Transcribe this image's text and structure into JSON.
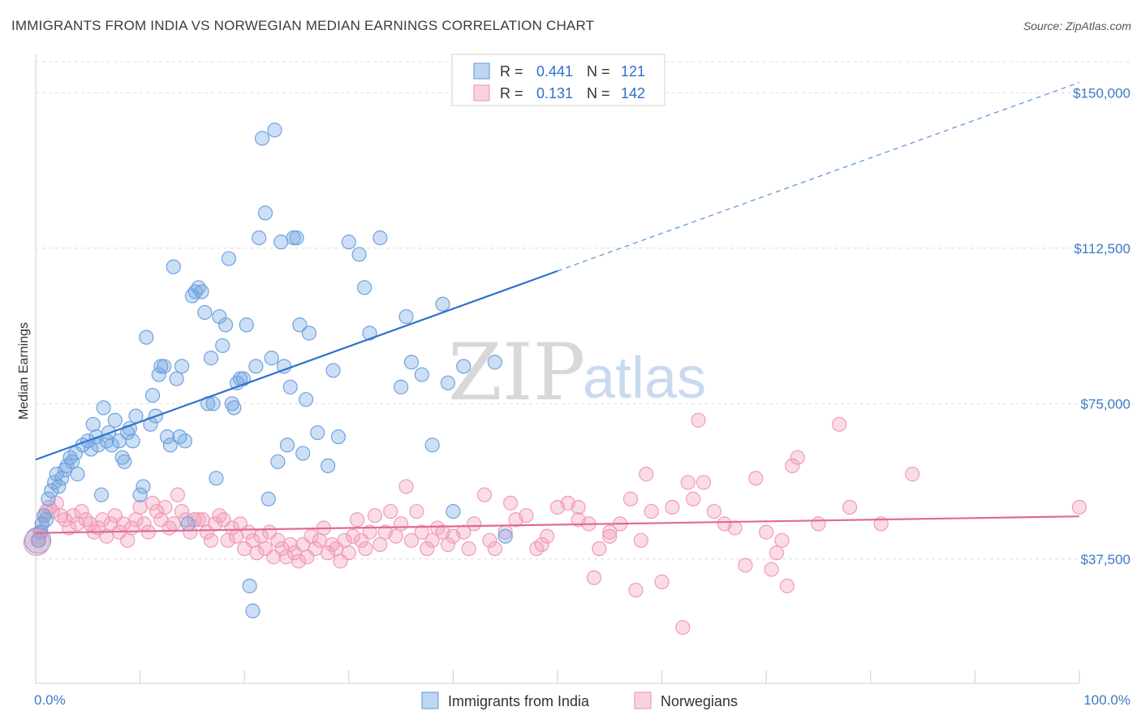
{
  "title": "IMMIGRANTS FROM INDIA VS NORWEGIAN MEDIAN EARNINGS CORRELATION CHART",
  "source": "Source: ZipAtlas.com",
  "watermark": {
    "zip": "ZIP",
    "atlas": "atlas"
  },
  "chart_data": {
    "type": "scatter",
    "ylabel": "Median Earnings",
    "xlim": [
      0,
      100
    ],
    "ylim": [
      7500,
      157500
    ],
    "x_tick_labels": {
      "min": "0.0%",
      "max": "100.0%"
    },
    "y_ticks": [
      {
        "value": 37500,
        "label": "$37,500"
      },
      {
        "value": 75000,
        "label": "$75,000"
      },
      {
        "value": 112500,
        "label": "$112,500"
      },
      {
        "value": 150000,
        "label": "$150,000"
      }
    ],
    "grid": "horizontal dashed",
    "legend_top": [
      {
        "r_label": "R =",
        "r": "0.441",
        "n_label": "N =",
        "n": "121",
        "color": "#6fa3e0"
      },
      {
        "r_label": "R =",
        "r": "0.131",
        "n_label": "N =",
        "n": "142",
        "color": "#f19bb8"
      }
    ],
    "series": [
      {
        "name": "Immigrants from India",
        "color": "#6fa3e0",
        "line_color": "#2e73cc",
        "trend": {
          "x0": 0,
          "y0": 61500,
          "x1": 50,
          "y1": 107000,
          "extend_to_x": 100,
          "extend_y": 152500
        },
        "points": [
          [
            0.3,
            42
          ],
          [
            0.5,
            44
          ],
          [
            0.6,
            46
          ],
          [
            0.8,
            48
          ],
          [
            1,
            47
          ],
          [
            1.2,
            52
          ],
          [
            1.5,
            54
          ],
          [
            1.8,
            56
          ],
          [
            2,
            58
          ],
          [
            2.2,
            55
          ],
          [
            2.5,
            57
          ],
          [
            2.8,
            59
          ],
          [
            3,
            60
          ],
          [
            3.3,
            62
          ],
          [
            3.5,
            61
          ],
          [
            3.8,
            63
          ],
          [
            4,
            58
          ],
          [
            4.5,
            65
          ],
          [
            5,
            66
          ],
          [
            5.3,
            64
          ],
          [
            5.5,
            70
          ],
          [
            5.8,
            67
          ],
          [
            6,
            65
          ],
          [
            6.3,
            53
          ],
          [
            6.5,
            74
          ],
          [
            6.8,
            66
          ],
          [
            7,
            68
          ],
          [
            7.3,
            65
          ],
          [
            7.6,
            71
          ],
          [
            8,
            66
          ],
          [
            8.3,
            62
          ],
          [
            8.5,
            61
          ],
          [
            8.8,
            68
          ],
          [
            9,
            69
          ],
          [
            9.3,
            66
          ],
          [
            9.6,
            72
          ],
          [
            10,
            53
          ],
          [
            10.3,
            55
          ],
          [
            10.6,
            91
          ],
          [
            11,
            70
          ],
          [
            11.2,
            77
          ],
          [
            11.5,
            72
          ],
          [
            11.8,
            82
          ],
          [
            12,
            84
          ],
          [
            12.3,
            84
          ],
          [
            12.6,
            67
          ],
          [
            12.9,
            65
          ],
          [
            13.2,
            108
          ],
          [
            13.5,
            81
          ],
          [
            13.8,
            67
          ],
          [
            14,
            84
          ],
          [
            14.3,
            66
          ],
          [
            14.6,
            46
          ],
          [
            15,
            101
          ],
          [
            15.3,
            102
          ],
          [
            15.6,
            103
          ],
          [
            15.9,
            102
          ],
          [
            16.2,
            97
          ],
          [
            16.5,
            75
          ],
          [
            16.8,
            86
          ],
          [
            17,
            75
          ],
          [
            17.3,
            57
          ],
          [
            17.6,
            96
          ],
          [
            17.9,
            89
          ],
          [
            18.2,
            94
          ],
          [
            18.5,
            110
          ],
          [
            18.8,
            75
          ],
          [
            19,
            74
          ],
          [
            19.3,
            80
          ],
          [
            19.6,
            81
          ],
          [
            19.9,
            81
          ],
          [
            20.2,
            94
          ],
          [
            20.5,
            31
          ],
          [
            20.8,
            25
          ],
          [
            21.1,
            84
          ],
          [
            21.4,
            115
          ],
          [
            21.7,
            139
          ],
          [
            22,
            121
          ],
          [
            22.3,
            52
          ],
          [
            22.6,
            86
          ],
          [
            22.9,
            141
          ],
          [
            23.2,
            61
          ],
          [
            23.5,
            114
          ],
          [
            23.8,
            84
          ],
          [
            24.1,
            65
          ],
          [
            24.4,
            79
          ],
          [
            24.7,
            115
          ],
          [
            25,
            115
          ],
          [
            25.3,
            94
          ],
          [
            25.6,
            63
          ],
          [
            25.9,
            76
          ],
          [
            26.2,
            92
          ],
          [
            27,
            68
          ],
          [
            28,
            60
          ],
          [
            28.5,
            83
          ],
          [
            29,
            67
          ],
          [
            30,
            114
          ],
          [
            31,
            111
          ],
          [
            31.5,
            103
          ],
          [
            32,
            92
          ],
          [
            33,
            115
          ],
          [
            35,
            79
          ],
          [
            35.5,
            96
          ],
          [
            36,
            85
          ],
          [
            37,
            82
          ],
          [
            38,
            65
          ],
          [
            39,
            99
          ],
          [
            39.5,
            80
          ],
          [
            40,
            49
          ],
          [
            41,
            84
          ],
          [
            44,
            85
          ],
          [
            45,
            43
          ]
        ],
        "size": 15
      },
      {
        "name": "Norwegians",
        "color": "#f19bb8",
        "line_color": "#e06a94",
        "trend": {
          "x0": 0,
          "y0": 43800,
          "x1": 100,
          "y1": 47800
        },
        "points": [
          [
            0.2,
            42
          ],
          [
            0.4,
            44
          ],
          [
            0.6,
            46
          ],
          [
            0.8,
            48
          ],
          [
            1,
            49
          ],
          [
            1.3,
            50
          ],
          [
            1.6,
            49
          ],
          [
            2,
            51
          ],
          [
            2.4,
            48
          ],
          [
            2.8,
            47
          ],
          [
            3.2,
            45
          ],
          [
            3.6,
            48
          ],
          [
            4,
            46
          ],
          [
            4.4,
            49
          ],
          [
            4.8,
            47
          ],
          [
            5.2,
            46
          ],
          [
            5.6,
            44
          ],
          [
            6,
            45
          ],
          [
            6.4,
            47
          ],
          [
            6.8,
            43
          ],
          [
            7.2,
            46
          ],
          [
            7.6,
            48
          ],
          [
            8,
            44
          ],
          [
            8.4,
            46
          ],
          [
            8.8,
            42
          ],
          [
            9.2,
            45
          ],
          [
            9.6,
            47
          ],
          [
            10,
            50
          ],
          [
            10.4,
            46
          ],
          [
            10.8,
            44
          ],
          [
            11.2,
            51
          ],
          [
            11.6,
            49
          ],
          [
            12,
            47
          ],
          [
            12.4,
            50
          ],
          [
            12.8,
            45
          ],
          [
            13.2,
            46
          ],
          [
            13.6,
            53
          ],
          [
            14,
            49
          ],
          [
            14.4,
            47
          ],
          [
            14.8,
            44
          ],
          [
            15.2,
            47
          ],
          [
            15.6,
            47
          ],
          [
            16,
            47
          ],
          [
            16.4,
            44
          ],
          [
            16.8,
            42
          ],
          [
            17.2,
            46
          ],
          [
            17.6,
            48
          ],
          [
            18,
            47
          ],
          [
            18.4,
            42
          ],
          [
            18.8,
            45
          ],
          [
            19.2,
            43
          ],
          [
            19.6,
            46
          ],
          [
            20,
            40
          ],
          [
            20.4,
            44
          ],
          [
            20.8,
            42
          ],
          [
            21.2,
            39
          ],
          [
            21.6,
            43
          ],
          [
            22,
            40
          ],
          [
            22.4,
            44
          ],
          [
            22.8,
            38
          ],
          [
            23.2,
            42
          ],
          [
            23.6,
            40
          ],
          [
            24,
            38
          ],
          [
            24.4,
            41
          ],
          [
            24.8,
            39
          ],
          [
            25.2,
            37
          ],
          [
            25.6,
            41
          ],
          [
            26,
            38
          ],
          [
            26.4,
            43
          ],
          [
            26.8,
            40
          ],
          [
            27.2,
            42
          ],
          [
            27.6,
            45
          ],
          [
            28,
            39
          ],
          [
            28.4,
            41
          ],
          [
            28.8,
            40
          ],
          [
            29.2,
            37
          ],
          [
            29.6,
            42
          ],
          [
            30,
            39
          ],
          [
            30.4,
            43
          ],
          [
            30.8,
            47
          ],
          [
            31.2,
            42
          ],
          [
            31.6,
            40
          ],
          [
            32,
            44
          ],
          [
            32.5,
            48
          ],
          [
            33,
            41
          ],
          [
            33.5,
            44
          ],
          [
            34,
            49
          ],
          [
            34.5,
            43
          ],
          [
            35,
            46
          ],
          [
            35.5,
            55
          ],
          [
            36,
            42
          ],
          [
            36.5,
            49
          ],
          [
            37,
            44
          ],
          [
            37.5,
            40
          ],
          [
            38,
            42
          ],
          [
            38.5,
            45
          ],
          [
            39,
            44
          ],
          [
            39.5,
            41
          ],
          [
            40,
            43
          ],
          [
            41,
            44
          ],
          [
            41.5,
            40
          ],
          [
            42,
            46
          ],
          [
            43,
            53
          ],
          [
            43.5,
            42
          ],
          [
            44,
            40
          ],
          [
            45,
            44
          ],
          [
            45.5,
            51
          ],
          [
            46,
            47
          ],
          [
            47,
            48
          ],
          [
            48,
            40
          ],
          [
            48.5,
            41
          ],
          [
            49,
            43
          ],
          [
            50,
            50
          ],
          [
            51,
            51
          ],
          [
            52,
            50
          ],
          [
            53,
            46
          ],
          [
            53.5,
            33
          ],
          [
            54,
            40
          ],
          [
            55,
            43
          ],
          [
            56,
            46
          ],
          [
            57,
            52
          ],
          [
            57.5,
            30
          ],
          [
            58,
            42
          ],
          [
            58.5,
            58
          ],
          [
            59,
            49
          ],
          [
            60,
            32
          ],
          [
            61,
            50
          ],
          [
            62,
            21
          ],
          [
            62.5,
            56
          ],
          [
            63,
            52
          ],
          [
            63.5,
            71
          ],
          [
            64,
            56
          ],
          [
            65,
            49
          ],
          [
            66,
            46
          ],
          [
            67,
            45
          ],
          [
            68,
            36
          ],
          [
            69,
            57
          ],
          [
            70,
            44
          ],
          [
            70.5,
            35
          ],
          [
            71,
            39
          ],
          [
            71.5,
            42
          ],
          [
            72,
            31
          ],
          [
            72.5,
            60
          ],
          [
            73,
            62
          ],
          [
            75,
            46
          ],
          [
            77,
            70
          ],
          [
            78,
            50
          ],
          [
            81,
            46
          ],
          [
            84,
            58
          ],
          [
            100,
            50
          ],
          [
            52,
            47
          ],
          [
            55,
            44
          ]
        ],
        "size": 15
      }
    ],
    "legend_bottom": [
      "Immigrants from India",
      "Norwegians"
    ]
  }
}
